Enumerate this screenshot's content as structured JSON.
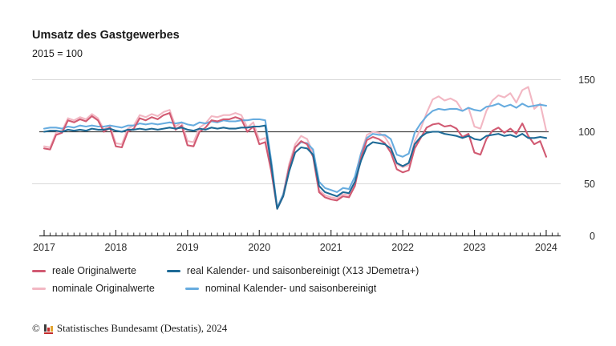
{
  "page": {
    "title": "Umsatz des Gastgewerbes",
    "subtitle": "2015 = 100"
  },
  "footer": {
    "copyright": "©",
    "logo_icon": "destatis-bar-chart-logo",
    "text": "Statistisches Bundesamt (Destatis), 2024"
  },
  "chart_data": {
    "type": "line",
    "title": "Umsatz des Gastgewerbes",
    "subtitle": "2015 = 100",
    "x_unit": "month",
    "x_start": "2017-01",
    "x_end": "2024-01",
    "x_year_labels": [
      "2017",
      "2018",
      "2019",
      "2020",
      "2021",
      "2022",
      "2023",
      "2024"
    ],
    "y_ticks": [
      0,
      50,
      100,
      150
    ],
    "y_tick_labels": [
      "0",
      "50",
      "100",
      "150"
    ],
    "ylim": [
      0,
      155
    ],
    "reference_line": 100,
    "grid": "horizontal-light",
    "legend_position": "bottom",
    "axis_color": "#333333",
    "gridline_color": "#d9d9d9",
    "reference_line_color": "#444444",
    "series": [
      {
        "name": "reale Originalwerte",
        "color": "#d15a72",
        "values": [
          84,
          83,
          97,
          99,
          111,
          109,
          112,
          110,
          115,
          111,
          100,
          104,
          86,
          85,
          100,
          103,
          113,
          111,
          114,
          112,
          116,
          118,
          102,
          106,
          87,
          86,
          100,
          104,
          111,
          110,
          112,
          112,
          114,
          112,
          100,
          105,
          88,
          90,
          62,
          26,
          38,
          66,
          85,
          91,
          88,
          76,
          42,
          37,
          35,
          34,
          38,
          37,
          48,
          75,
          92,
          95,
          93,
          89,
          80,
          64,
          61,
          63,
          84,
          94,
          104,
          107,
          108,
          105,
          106,
          103,
          95,
          98,
          80,
          78,
          93,
          101,
          104,
          99,
          103,
          98,
          108,
          96,
          88,
          91,
          76
        ]
      },
      {
        "name": "real Kalender- und saisonbereinigt (X13 JDemetra+)",
        "color": "#1e6a96",
        "values": [
          100,
          101,
          101,
          100,
          102,
          101,
          102,
          101,
          103,
          102,
          102,
          103,
          101,
          100,
          102,
          102,
          103,
          102,
          103,
          102,
          103,
          104,
          103,
          104,
          102,
          101,
          103,
          102,
          104,
          103,
          104,
          103,
          103,
          104,
          104,
          105,
          105,
          106,
          68,
          26,
          38,
          62,
          80,
          85,
          84,
          78,
          48,
          42,
          40,
          38,
          42,
          41,
          52,
          72,
          86,
          90,
          89,
          88,
          84,
          70,
          67,
          70,
          88,
          95,
          99,
          100,
          100,
          98,
          97,
          96,
          94,
          96,
          93,
          92,
          96,
          97,
          98,
          96,
          97,
          95,
          98,
          94,
          94,
          95,
          94
        ]
      },
      {
        "name": "nominale Originalwerte",
        "color": "#f2b7c3",
        "values": [
          86,
          85,
          99,
          101,
          113,
          111,
          114,
          112,
          117,
          113,
          102,
          106,
          89,
          88,
          103,
          106,
          116,
          114,
          117,
          115,
          119,
          121,
          105,
          109,
          91,
          90,
          104,
          108,
          115,
          114,
          116,
          116,
          118,
          116,
          104,
          109,
          92,
          94,
          65,
          27,
          40,
          69,
          88,
          96,
          93,
          80,
          44,
          39,
          37,
          36,
          40,
          39,
          51,
          79,
          97,
          100,
          99,
          95,
          86,
          69,
          66,
          68,
          91,
          103,
          118,
          131,
          134,
          130,
          132,
          129,
          120,
          123,
          105,
          103,
          120,
          130,
          135,
          133,
          137,
          128,
          140,
          143,
          122,
          127,
          101
        ]
      },
      {
        "name": "nominal Kalender- und saisonbereinigt",
        "color": "#67acdf",
        "values": [
          103,
          104,
          104,
          103,
          105,
          104,
          106,
          105,
          106,
          105,
          105,
          106,
          105,
          104,
          106,
          106,
          108,
          107,
          108,
          107,
          108,
          109,
          108,
          109,
          107,
          106,
          109,
          108,
          110,
          109,
          111,
          110,
          110,
          111,
          111,
          112,
          112,
          111,
          72,
          27,
          40,
          66,
          85,
          90,
          89,
          83,
          52,
          46,
          44,
          42,
          46,
          45,
          57,
          79,
          94,
          98,
          97,
          97,
          93,
          78,
          76,
          79,
          99,
          108,
          115,
          120,
          122,
          121,
          122,
          122,
          120,
          123,
          121,
          120,
          124,
          125,
          127,
          124,
          126,
          123,
          127,
          124,
          125,
          126,
          125
        ]
      }
    ]
  }
}
